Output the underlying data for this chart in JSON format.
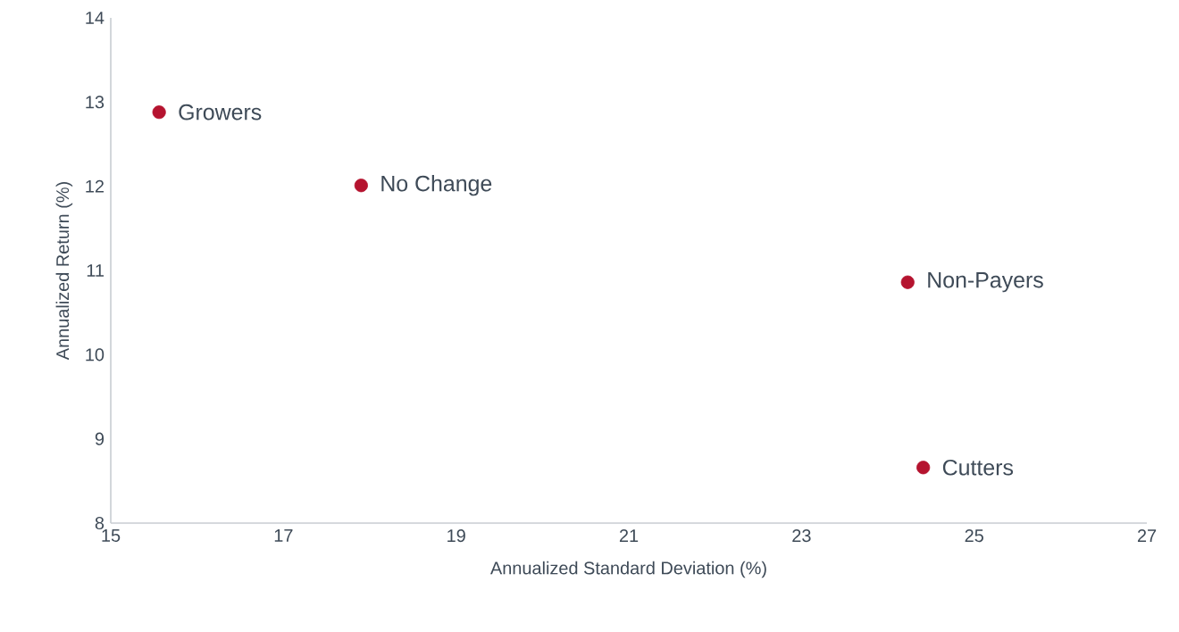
{
  "chart_data": {
    "type": "scatter",
    "xlabel": "Annualized Standard Deviation (%)",
    "ylabel": "Annualized Return (%)",
    "x": [
      15.56,
      17.9,
      24.23,
      24.41
    ],
    "values": [
      12.88,
      12.01,
      10.86,
      8.66
    ],
    "color": "#b5132f",
    "marker": "circle",
    "grid": false,
    "xlim": [
      15,
      27
    ],
    "xticks": [
      15,
      17,
      19,
      21,
      23,
      25,
      27
    ],
    "ylim": [
      8,
      14
    ],
    "yticks": [
      8,
      9,
      10,
      11,
      12,
      13,
      14
    ],
    "annotations": [
      {
        "text": "Growers",
        "x": 15.56,
        "y": 12.88
      },
      {
        "text": "No Change",
        "x": 17.9,
        "y": 12.01
      },
      {
        "text": "Non-Payers",
        "x": 24.23,
        "y": 10.86
      },
      {
        "text": "Cutters",
        "x": 24.41,
        "y": 8.66
      }
    ]
  }
}
